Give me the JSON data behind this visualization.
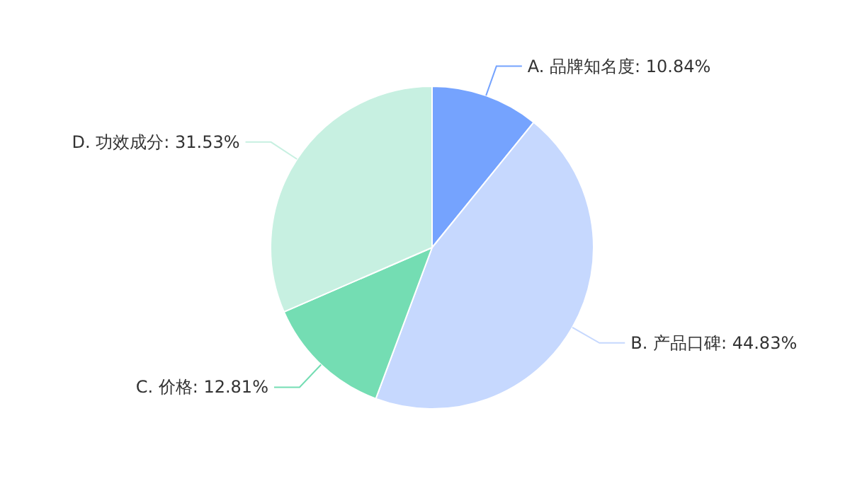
{
  "chart_data": {
    "type": "pie",
    "categories": [
      "A. 品牌知名度",
      "B. 产品口碑",
      "C. 价格",
      "D. 功效成分"
    ],
    "values": [
      10.84,
      44.83,
      12.81,
      31.53
    ],
    "value_labels": [
      "10.84%",
      "44.83%",
      "12.81%",
      "31.53%"
    ],
    "colors": [
      "#75a3fe",
      "#c6d8fe",
      "#74ddb3",
      "#c7f0e1"
    ],
    "legend": false
  }
}
